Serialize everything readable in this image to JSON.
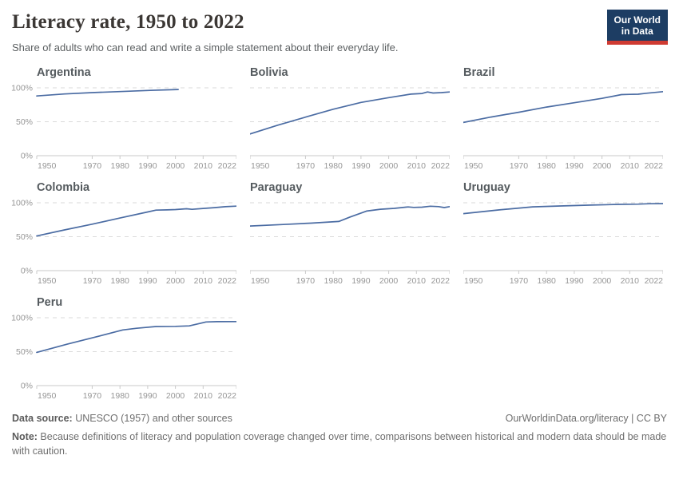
{
  "header": {
    "title": "Literacy rate, 1950 to 2022",
    "subtitle": "Share of adults who can read and write a simple statement about their everyday life.",
    "logo_line1": "Our World",
    "logo_line2": "in Data"
  },
  "footer": {
    "datasource_label": "Data source:",
    "datasource_value": " UNESCO (1957) and other sources",
    "link": "OurWorldinData.org/literacy | CC BY",
    "note_label": "Note:",
    "note_value": " Because definitions of literacy and population coverage changed over time, comparisons between historical and modern data should be made with caution."
  },
  "colors": {
    "line": "#4B6CA3",
    "grid": "#dadada",
    "axis": "#c9c9c9",
    "tick_text": "#969696",
    "facet_title": "#555b5f",
    "logo_bg": "#1d3d63",
    "logo_red": "#cf3b32"
  },
  "chart_data": [
    {
      "type": "line",
      "title": "Argentina",
      "xlim": [
        1950,
        2022
      ],
      "ylim": [
        0,
        100
      ],
      "x_ticks": [
        1950,
        1970,
        1980,
        1990,
        2000,
        2010,
        2022
      ],
      "y_ticks": [
        {
          "value": 0,
          "label": "0%"
        },
        {
          "value": 50,
          "label": "50%"
        },
        {
          "value": 100,
          "label": "100%"
        }
      ],
      "points": [
        [
          1950,
          88
        ],
        [
          1960,
          91
        ],
        [
          1970,
          93
        ],
        [
          1980,
          94.5
        ],
        [
          1991,
          96.2
        ],
        [
          2001,
          97.5
        ]
      ]
    },
    {
      "type": "line",
      "title": "Bolivia",
      "xlim": [
        1950,
        2022
      ],
      "ylim": [
        0,
        100
      ],
      "x_ticks": [
        1950,
        1970,
        1980,
        1990,
        2000,
        2010,
        2022
      ],
      "y_ticks": [
        {
          "value": 0,
          "label": "0%"
        },
        {
          "value": 50,
          "label": "50%"
        },
        {
          "value": 100,
          "label": "100%"
        }
      ],
      "points": [
        [
          1950,
          32
        ],
        [
          1960,
          45
        ],
        [
          1971,
          58
        ],
        [
          1980,
          68.5
        ],
        [
          1990,
          78.5
        ],
        [
          2000,
          85.5
        ],
        [
          2008,
          90.7
        ],
        [
          2012,
          91.7
        ],
        [
          2014,
          93.9
        ],
        [
          2016,
          92.4
        ],
        [
          2019,
          92.9
        ],
        [
          2022,
          93.9
        ]
      ]
    },
    {
      "type": "line",
      "title": "Brazil",
      "xlim": [
        1950,
        2022
      ],
      "ylim": [
        0,
        100
      ],
      "x_ticks": [
        1950,
        1970,
        1980,
        1990,
        2000,
        2010,
        2022
      ],
      "y_ticks": [
        {
          "value": 0,
          "label": "0%"
        },
        {
          "value": 50,
          "label": "50%"
        },
        {
          "value": 100,
          "label": "100%"
        }
      ],
      "points": [
        [
          1950,
          49
        ],
        [
          1960,
          57
        ],
        [
          1970,
          64
        ],
        [
          1980,
          71.6
        ],
        [
          1990,
          78
        ],
        [
          2000,
          84.5
        ],
        [
          2007,
          90
        ],
        [
          2010,
          90.3
        ],
        [
          2013,
          90.6
        ],
        [
          2016,
          92
        ],
        [
          2019,
          93.2
        ],
        [
          2022,
          94.3
        ]
      ]
    },
    {
      "type": "line",
      "title": "Colombia",
      "xlim": [
        1950,
        2022
      ],
      "ylim": [
        0,
        100
      ],
      "y_ticks": [
        {
          "value": 0,
          "label": "0%"
        },
        {
          "value": 50,
          "label": "50%"
        },
        {
          "value": 100,
          "label": "100%"
        }
      ],
      "x_ticks": [
        1950,
        1970,
        1980,
        1990,
        2000,
        2010,
        2022
      ],
      "points": [
        [
          1950,
          51
        ],
        [
          1960,
          60
        ],
        [
          1970,
          68.5
        ],
        [
          1980,
          77.5
        ],
        [
          1990,
          86.5
        ],
        [
          1993,
          89.2
        ],
        [
          1997,
          89.5
        ],
        [
          2000,
          90
        ],
        [
          2004,
          91.2
        ],
        [
          2006,
          90.4
        ],
        [
          2010,
          91.6
        ],
        [
          2014,
          92.8
        ],
        [
          2018,
          94.2
        ],
        [
          2022,
          95.1
        ]
      ]
    },
    {
      "type": "line",
      "title": "Paraguay",
      "xlim": [
        1950,
        2022
      ],
      "ylim": [
        0,
        100
      ],
      "x_ticks": [
        1950,
        1970,
        1980,
        1990,
        2000,
        2010,
        2022
      ],
      "y_ticks": [
        {
          "value": 0,
          "label": "0%"
        },
        {
          "value": 50,
          "label": "50%"
        },
        {
          "value": 100,
          "label": "100%"
        }
      ],
      "points": [
        [
          1950,
          65.8
        ],
        [
          1962,
          68
        ],
        [
          1972,
          70
        ],
        [
          1982,
          72.5
        ],
        [
          1986,
          79
        ],
        [
          1992,
          87.8
        ],
        [
          1997,
          90.5
        ],
        [
          2002,
          91.8
        ],
        [
          2007,
          93.9
        ],
        [
          2009,
          93.2
        ],
        [
          2012,
          93.5
        ],
        [
          2015,
          94.9
        ],
        [
          2018,
          94.3
        ],
        [
          2020,
          93.0
        ],
        [
          2022,
          94.3
        ]
      ]
    },
    {
      "type": "line",
      "title": "Uruguay",
      "xlim": [
        1950,
        2022
      ],
      "ylim": [
        0,
        100
      ],
      "x_ticks": [
        1950,
        1970,
        1980,
        1990,
        2000,
        2010,
        2022
      ],
      "y_ticks": [
        {
          "value": 0,
          "label": "0%"
        },
        {
          "value": 50,
          "label": "50%"
        },
        {
          "value": 100,
          "label": "100%"
        }
      ],
      "points": [
        [
          1950,
          84
        ],
        [
          1963,
          89.5
        ],
        [
          1975,
          94
        ],
        [
          1985,
          95.3
        ],
        [
          1996,
          96.6
        ],
        [
          2006,
          97.7
        ],
        [
          2013,
          98
        ],
        [
          2017,
          98.6
        ],
        [
          2022,
          98.8
        ]
      ]
    },
    {
      "type": "line",
      "title": "Peru",
      "xlim": [
        1950,
        2022
      ],
      "ylim": [
        0,
        100
      ],
      "x_ticks": [
        1950,
        1970,
        1980,
        1990,
        2000,
        2010,
        2022
      ],
      "y_ticks": [
        {
          "value": 0,
          "label": "0%"
        },
        {
          "value": 50,
          "label": "50%"
        },
        {
          "value": 100,
          "label": "100%"
        }
      ],
      "points": [
        [
          1950,
          49
        ],
        [
          1961,
          61
        ],
        [
          1972,
          72.5
        ],
        [
          1981,
          82
        ],
        [
          1986,
          84.5
        ],
        [
          1993,
          87
        ],
        [
          2000,
          87.3
        ],
        [
          2005,
          88
        ],
        [
          2011,
          93.8
        ],
        [
          2015,
          94.2
        ],
        [
          2022,
          94.4
        ]
      ]
    }
  ]
}
